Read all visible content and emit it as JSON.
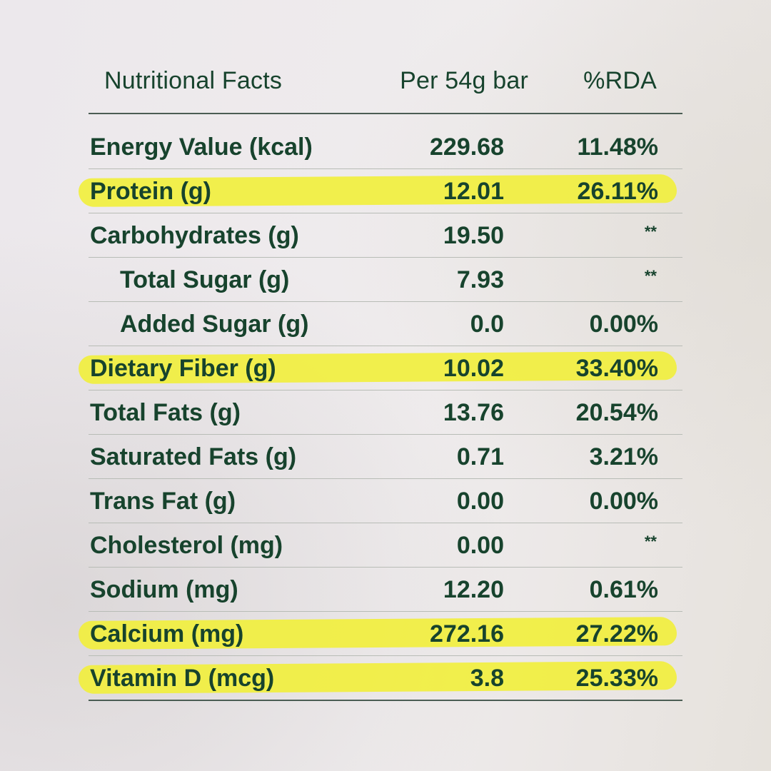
{
  "table": {
    "headers": {
      "label": "Nutritional Facts",
      "per": "Per 54g bar",
      "rda": "%RDA"
    },
    "rows": [
      {
        "label": "Energy Value (kcal)",
        "amount": "229.68",
        "rda": "11.48%",
        "highlighted": false,
        "indent": false
      },
      {
        "label": "Protein (g)",
        "amount": "12.01",
        "rda": "26.11%",
        "highlighted": true,
        "indent": false
      },
      {
        "label": "Carbohydrates (g)",
        "amount": "19.50",
        "rda": "**",
        "highlighted": false,
        "indent": false
      },
      {
        "label": "Total Sugar (g)",
        "amount": "7.93",
        "rda": "**",
        "highlighted": false,
        "indent": true
      },
      {
        "label": "Added Sugar (g)",
        "amount": "0.0",
        "rda": "0.00%",
        "highlighted": false,
        "indent": true
      },
      {
        "label": "Dietary Fiber (g)",
        "amount": "10.02",
        "rda": "33.40%",
        "highlighted": true,
        "indent": false
      },
      {
        "label": "Total Fats (g)",
        "amount": "13.76",
        "rda": "20.54%",
        "highlighted": false,
        "indent": false
      },
      {
        "label": "Saturated Fats (g)",
        "amount": "0.71",
        "rda": "3.21%",
        "highlighted": false,
        "indent": false
      },
      {
        "label": "Trans Fat (g)",
        "amount": "0.00",
        "rda": "0.00%",
        "highlighted": false,
        "indent": false
      },
      {
        "label": "Cholesterol (mg)",
        "amount": "0.00",
        "rda": "**",
        "highlighted": false,
        "indent": false
      },
      {
        "label": "Sodium (mg)",
        "amount": "12.20",
        "rda": "0.61%",
        "highlighted": false,
        "indent": false
      },
      {
        "label": "Calcium (mg)",
        "amount": "272.16",
        "rda": "27.22%",
        "highlighted": true,
        "indent": false
      },
      {
        "label": "Vitamin D (mcg)",
        "amount": "3.8",
        "rda": "25.33%",
        "highlighted": true,
        "indent": false
      }
    ]
  },
  "colors": {
    "text": "#17432d",
    "highlight": "#f1ef3e",
    "rule": "#4b5d54",
    "background": "#ece8ec"
  }
}
